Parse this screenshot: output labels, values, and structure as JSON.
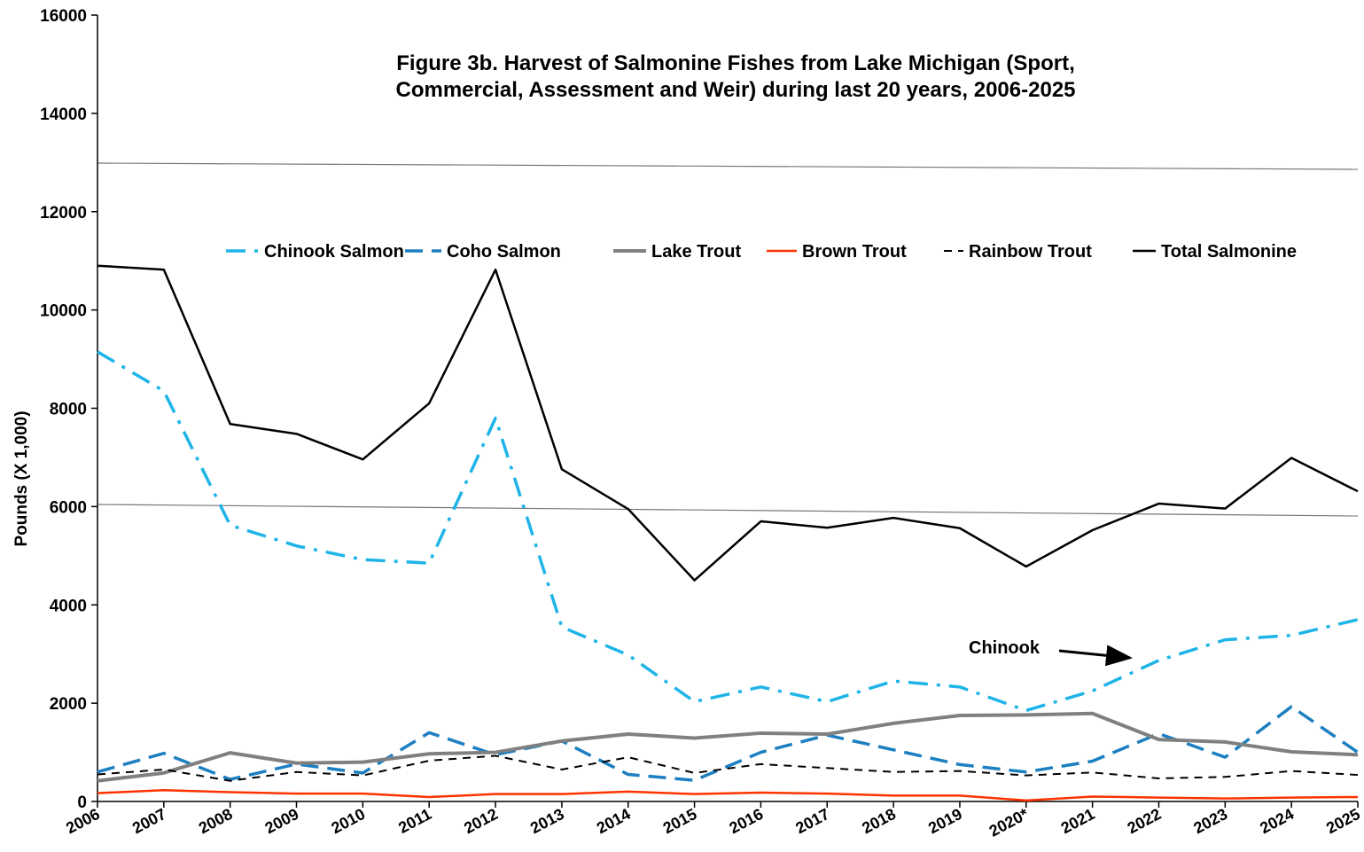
{
  "chart_data": {
    "type": "line",
    "title": "Figure 3b.  Harvest of Salmonine Fishes from Lake Michigan (Sport,",
    "subtitle": "Commercial, Assessment and Weir) during last 20 years, 2006-2025",
    "y_label": "Pounds (X 1,000)",
    "annotation": "Chinook",
    "categories": [
      "2006",
      "2007",
      "2008",
      "2009",
      "2010",
      "2011",
      "2012",
      "2013",
      "2014",
      "2015",
      "2016",
      "2017",
      "2018",
      "2019",
      "2020*",
      "2021",
      "2022",
      "2023",
      "2024",
      "2025"
    ],
    "ylim": [
      0,
      16000
    ],
    "yticks": [
      0,
      2000,
      4000,
      6000,
      8000,
      10000,
      12000,
      14000,
      16000
    ],
    "series": [
      {
        "name": "Chinook Salmon",
        "color": "#1fb4e8",
        "values": [
          9150,
          8350,
          5620,
          5200,
          4920,
          4850,
          7800,
          3550,
          2980,
          2030,
          2330,
          2030,
          2450,
          2330,
          1850,
          2250,
          2870,
          3290,
          3380,
          3700
        ]
      },
      {
        "name": "Coho Salmon",
        "color": "#1c7fc1",
        "values": [
          600,
          980,
          450,
          760,
          580,
          1400,
          950,
          1230,
          550,
          430,
          1000,
          1350,
          1050,
          750,
          600,
          820,
          1380,
          900,
          1930,
          1000
        ]
      },
      {
        "name": "Lake Trout",
        "color": "#808080",
        "values": [
          420,
          580,
          990,
          780,
          800,
          970,
          1000,
          1230,
          1370,
          1290,
          1390,
          1370,
          1590,
          1750,
          1760,
          1790,
          1260,
          1210,
          1010,
          950
        ]
      },
      {
        "name": "Brown Trout",
        "color": "#ff3300",
        "values": [
          170,
          230,
          190,
          160,
          160,
          90,
          150,
          150,
          200,
          150,
          180,
          160,
          120,
          120,
          20,
          100,
          80,
          60,
          80,
          90
        ]
      },
      {
        "name": "Rainbow Trout",
        "color": "#000000",
        "values": [
          550,
          650,
          420,
          600,
          530,
          830,
          930,
          650,
          900,
          580,
          760,
          680,
          600,
          620,
          530,
          590,
          470,
          500,
          620,
          540
        ]
      },
      {
        "name": "Total Salmonine",
        "color": "#000000",
        "values": [
          10900,
          10820,
          7680,
          7480,
          6960,
          8100,
          10820,
          6760,
          5950,
          4500,
          5700,
          5570,
          5770,
          5560,
          4780,
          5520,
          6060,
          5960,
          6990,
          6310
        ]
      }
    ]
  }
}
